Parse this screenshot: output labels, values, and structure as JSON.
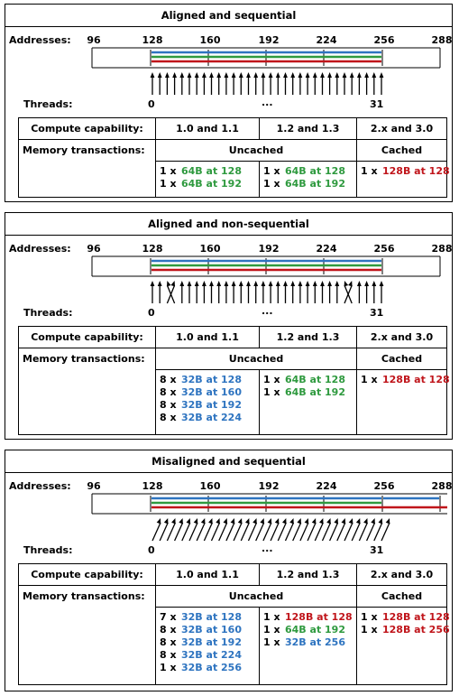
{
  "labels": {
    "addresses": "Addresses:",
    "threads": "Threads:",
    "compute_capability": "Compute capability:",
    "memory_transactions": "Memory transactions:",
    "thread_first": "0",
    "thread_dots": "...",
    "thread_last": "31"
  },
  "addresses": [
    "96",
    "128",
    "160",
    "192",
    "224",
    "256",
    "288"
  ],
  "colors": {
    "green": "#2f9a3f",
    "blue": "#2e74c0",
    "red": "#c0151b"
  },
  "panels": [
    {
      "title": "Aligned and sequential",
      "capabilities": [
        "1.0 and 1.1",
        "1.2 and 1.3",
        "2.x and 3.0"
      ],
      "uncached_label": "Uncached",
      "cached_label": "Cached",
      "col1": [
        {
          "count": "1 x",
          "text": "64B at 128",
          "color": "green"
        },
        {
          "count": "1 x",
          "text": "64B at 192",
          "color": "green"
        }
      ],
      "col2": [
        {
          "count": "1 x",
          "text": "64B at 128",
          "color": "green"
        },
        {
          "count": "1 x",
          "text": "64B at 192",
          "color": "green"
        }
      ],
      "col3": [
        {
          "count": "1 x",
          "text": "128B at 128",
          "color": "red"
        }
      ]
    },
    {
      "title": "Aligned and non-sequential",
      "capabilities": [
        "1.0 and 1.1",
        "1.2 and 1.3",
        "2.x and 3.0"
      ],
      "uncached_label": "Uncached",
      "cached_label": "Cached",
      "col1": [
        {
          "count": "8 x",
          "text": "32B at 128",
          "color": "blue"
        },
        {
          "count": "8 x",
          "text": "32B at 160",
          "color": "blue"
        },
        {
          "count": "8 x",
          "text": "32B at 192",
          "color": "blue"
        },
        {
          "count": "8 x",
          "text": "32B at 224",
          "color": "blue"
        }
      ],
      "col2": [
        {
          "count": "1 x",
          "text": "64B at 128",
          "color": "green"
        },
        {
          "count": "1 x",
          "text": "64B at 192",
          "color": "green"
        }
      ],
      "col3": [
        {
          "count": "1 x",
          "text": "128B at 128",
          "color": "red"
        }
      ]
    },
    {
      "title": "Misaligned and sequential",
      "capabilities": [
        "1.0 and 1.1",
        "1.2 and 1.3",
        "2.x and 3.0"
      ],
      "uncached_label": "Uncached",
      "cached_label": "Cached",
      "col1": [
        {
          "count": "7 x",
          "text": "32B at 128",
          "color": "blue"
        },
        {
          "count": "8 x",
          "text": "32B at 160",
          "color": "blue"
        },
        {
          "count": "8 x",
          "text": "32B at 192",
          "color": "blue"
        },
        {
          "count": "8 x",
          "text": "32B at 224",
          "color": "blue"
        },
        {
          "count": "1 x",
          "text": "32B at 256",
          "color": "blue"
        }
      ],
      "col2": [
        {
          "count": "1 x",
          "text": "128B at 128",
          "color": "red"
        },
        {
          "count": "1 x",
          "text": "64B at 192",
          "color": "green"
        },
        {
          "count": "1 x",
          "text": "32B at 256",
          "color": "blue"
        }
      ],
      "col3": [
        {
          "count": "1 x",
          "text": "128B at 128",
          "color": "red"
        },
        {
          "count": "1 x",
          "text": "128B at 256",
          "color": "red"
        }
      ]
    }
  ]
}
